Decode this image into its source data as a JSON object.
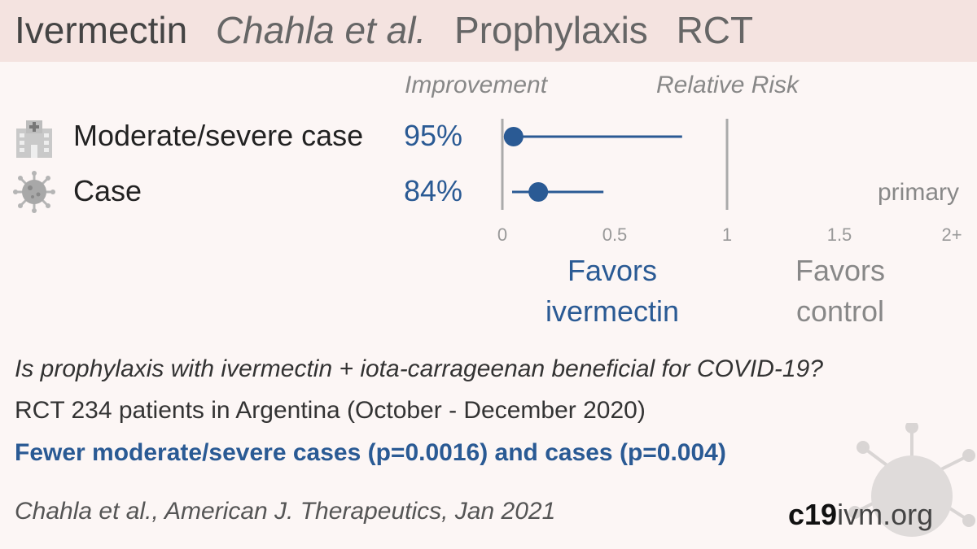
{
  "header": {
    "drug": "Ivermectin",
    "study": "Chahla et al.",
    "setting": "Prophylaxis",
    "design": "RCT"
  },
  "columns": {
    "improvement": "Improvement",
    "relative_risk": "Relative Risk"
  },
  "rows": [
    {
      "label": "Moderate/severe case",
      "improvement": "95%",
      "icon": "hospital-icon"
    },
    {
      "label": "Case",
      "improvement": "84%",
      "icon": "virus-icon",
      "tag": "primary"
    }
  ],
  "favors": {
    "treatment_line1": "Favors",
    "treatment_line2": "ivermectin",
    "control_line1": "Favors",
    "control_line2": "control"
  },
  "summary": {
    "question": "Is prophylaxis with ivermectin + iota-carrageenan beneficial for COVID-19?",
    "design": "RCT 234 patients in Argentina (October - December 2020)",
    "result": "Fewer moderate/severe cases (p=0.0016) and cases (p=0.004)"
  },
  "citation": "Chahla et al., American J. Therapeutics, Jan 2021",
  "brand": {
    "bold": "c19",
    "suffix": "ivm.org"
  },
  "colors": {
    "accent": "#2a5a94",
    "header_bg": "#f4e3e0",
    "page_bg": "#fcf6f5",
    "axis": "#aaaaaa"
  },
  "chart_data": {
    "type": "scatter",
    "xlabel": "Relative Risk",
    "xlim": [
      0,
      2
    ],
    "x_ticks": [
      0,
      0.5,
      1,
      1.5,
      2
    ],
    "x_tick_labels": [
      "0",
      "0.5",
      "1",
      "1.5",
      "2+"
    ],
    "reference_line": 1,
    "series": [
      {
        "name": "Moderate/severe case",
        "rr": 0.05,
        "ci_low": 0.0,
        "ci_high": 0.8
      },
      {
        "name": "Case",
        "rr": 0.16,
        "ci_low": 0.04,
        "ci_high": 0.45
      }
    ]
  }
}
